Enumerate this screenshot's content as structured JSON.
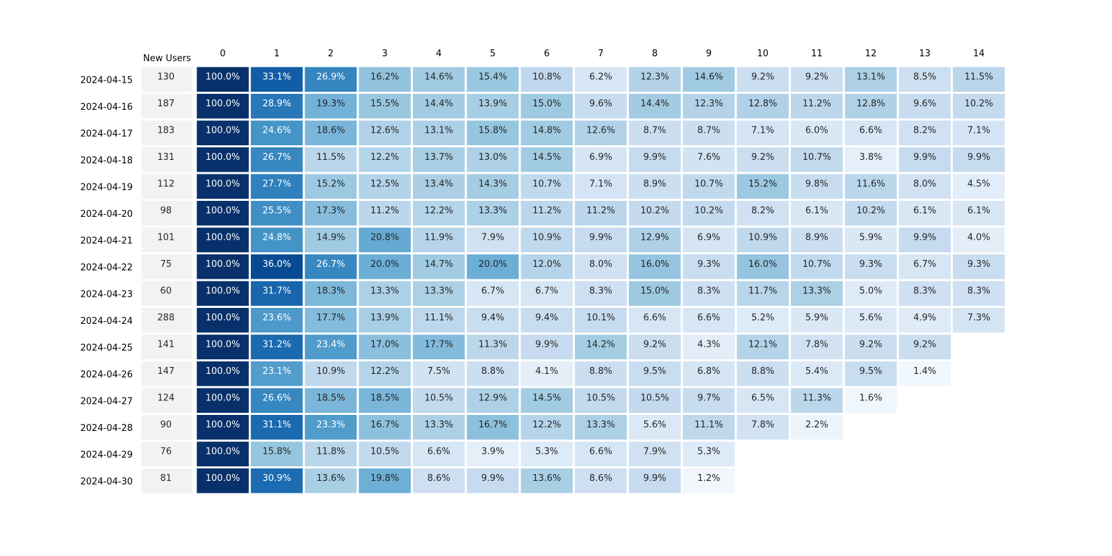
{
  "chart_data": {
    "type": "heatmap",
    "title": "",
    "xlabel": "",
    "ylabel": "",
    "size_header": "New Users",
    "columns": [
      "0",
      "1",
      "2",
      "3",
      "4",
      "5",
      "6",
      "7",
      "8",
      "9",
      "10",
      "11",
      "12",
      "13",
      "14"
    ],
    "rows": [
      {
        "cohort": "2024-04-15",
        "new_users": 130,
        "values": [
          100.0,
          33.1,
          26.9,
          16.2,
          14.6,
          15.4,
          10.8,
          6.2,
          12.3,
          14.6,
          9.2,
          9.2,
          13.1,
          8.5,
          11.5
        ]
      },
      {
        "cohort": "2024-04-16",
        "new_users": 187,
        "values": [
          100.0,
          28.9,
          19.3,
          15.5,
          14.4,
          13.9,
          15.0,
          9.6,
          14.4,
          12.3,
          12.8,
          11.2,
          12.8,
          9.6,
          10.2
        ]
      },
      {
        "cohort": "2024-04-17",
        "new_users": 183,
        "values": [
          100.0,
          24.6,
          18.6,
          12.6,
          13.1,
          15.8,
          14.8,
          12.6,
          8.7,
          8.7,
          7.1,
          6.0,
          6.6,
          8.2,
          7.1
        ]
      },
      {
        "cohort": "2024-04-18",
        "new_users": 131,
        "values": [
          100.0,
          26.7,
          11.5,
          12.2,
          13.7,
          13.0,
          14.5,
          6.9,
          9.9,
          7.6,
          9.2,
          10.7,
          3.8,
          9.9,
          9.9
        ]
      },
      {
        "cohort": "2024-04-19",
        "new_users": 112,
        "values": [
          100.0,
          27.7,
          15.2,
          12.5,
          13.4,
          14.3,
          10.7,
          7.1,
          8.9,
          10.7,
          15.2,
          9.8,
          11.6,
          8.0,
          4.5
        ]
      },
      {
        "cohort": "2024-04-20",
        "new_users": 98,
        "values": [
          100.0,
          25.5,
          17.3,
          11.2,
          12.2,
          13.3,
          11.2,
          11.2,
          10.2,
          10.2,
          8.2,
          6.1,
          10.2,
          6.1,
          6.1
        ]
      },
      {
        "cohort": "2024-04-21",
        "new_users": 101,
        "values": [
          100.0,
          24.8,
          14.9,
          20.8,
          11.9,
          7.9,
          10.9,
          9.9,
          12.9,
          6.9,
          10.9,
          8.9,
          5.9,
          9.9,
          4.0
        ]
      },
      {
        "cohort": "2024-04-22",
        "new_users": 75,
        "values": [
          100.0,
          36.0,
          26.7,
          20.0,
          14.7,
          20.0,
          12.0,
          8.0,
          16.0,
          9.3,
          16.0,
          10.7,
          9.3,
          6.7,
          9.3
        ]
      },
      {
        "cohort": "2024-04-23",
        "new_users": 60,
        "values": [
          100.0,
          31.7,
          18.3,
          13.3,
          13.3,
          6.7,
          6.7,
          8.3,
          15.0,
          8.3,
          11.7,
          13.3,
          5.0,
          8.3,
          8.3
        ]
      },
      {
        "cohort": "2024-04-24",
        "new_users": 288,
        "values": [
          100.0,
          23.6,
          17.7,
          13.9,
          11.1,
          9.4,
          9.4,
          10.1,
          6.6,
          6.6,
          5.2,
          5.9,
          5.6,
          4.9,
          7.3
        ]
      },
      {
        "cohort": "2024-04-25",
        "new_users": 141,
        "values": [
          100.0,
          31.2,
          23.4,
          17.0,
          17.7,
          11.3,
          9.9,
          14.2,
          9.2,
          4.3,
          12.1,
          7.8,
          9.2,
          9.2
        ]
      },
      {
        "cohort": "2024-04-26",
        "new_users": 147,
        "values": [
          100.0,
          23.1,
          10.9,
          12.2,
          7.5,
          8.8,
          4.1,
          8.8,
          9.5,
          6.8,
          8.8,
          5.4,
          9.5,
          1.4
        ]
      },
      {
        "cohort": "2024-04-27",
        "new_users": 124,
        "values": [
          100.0,
          26.6,
          18.5,
          18.5,
          10.5,
          12.9,
          14.5,
          10.5,
          10.5,
          9.7,
          6.5,
          11.3,
          1.6
        ]
      },
      {
        "cohort": "2024-04-28",
        "new_users": 90,
        "values": [
          100.0,
          31.1,
          23.3,
          16.7,
          13.3,
          16.7,
          12.2,
          13.3,
          5.6,
          11.1,
          7.8,
          2.2
        ]
      },
      {
        "cohort": "2024-04-29",
        "new_users": 76,
        "values": [
          100.0,
          15.8,
          11.8,
          10.5,
          6.6,
          3.9,
          5.3,
          6.6,
          7.9,
          5.3
        ]
      },
      {
        "cohort": "2024-04-30",
        "new_users": 81,
        "values": [
          100.0,
          30.9,
          13.6,
          19.8,
          8.6,
          9.9,
          13.6,
          8.6,
          9.9,
          1.2
        ]
      }
    ],
    "value_format": "percent_1dp",
    "colormap": "Blues",
    "color_range": [
      0,
      40
    ],
    "size_cell_color": "#f2f2f2",
    "grid": false,
    "legend": "none"
  }
}
